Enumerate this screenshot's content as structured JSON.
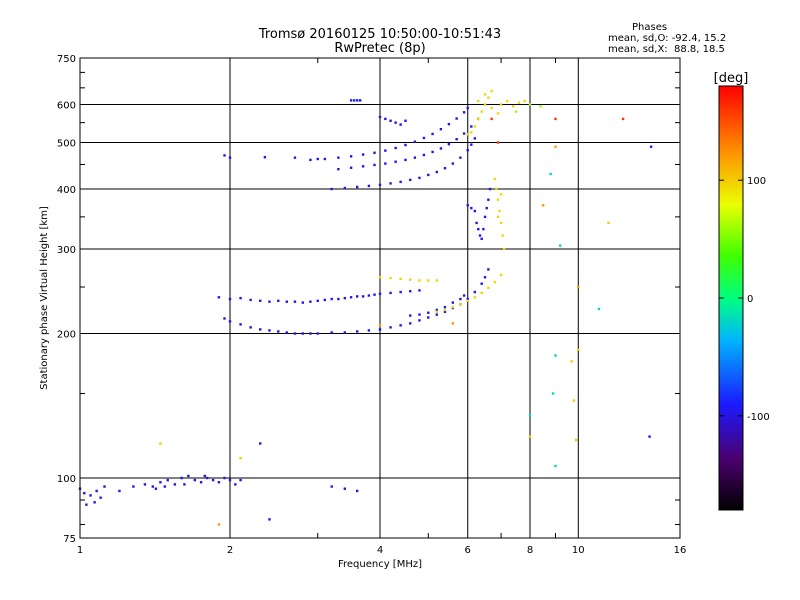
{
  "chart_data": {
    "type": "scatter",
    "title": "Tromsø 20160125 10:50:00-10:51:43",
    "subtitle": "RwPretec (8p)",
    "xlabel": "Frequency [MHz]",
    "ylabel": "Stationary phase Virtual Height [km]",
    "x_scale": "log",
    "y_scale": "log",
    "xlim": [
      1,
      16
    ],
    "ylim": [
      75,
      750
    ],
    "x_ticks": [
      1,
      2,
      4,
      6,
      8,
      10,
      16
    ],
    "y_ticks": [
      75,
      100,
      200,
      300,
      400,
      500,
      600,
      750
    ],
    "x_tick_labels": [
      "1",
      "2",
      "4",
      "6",
      "8",
      "10",
      "16"
    ],
    "y_tick_labels": [
      "75",
      "100",
      "200",
      "300",
      "400",
      "500",
      "600",
      "750"
    ],
    "grid": true,
    "stats": {
      "heading": "Phases",
      "line_o": "mean, sd,O: -92.4, 15.2",
      "line_x": "mean, sd,X:  88.8, 18.5"
    },
    "colorbar": {
      "label": "[deg]",
      "range": [
        -180,
        180
      ],
      "ticks": [
        100,
        0,
        -100
      ],
      "tick_labels": [
        "100",
        "0",
        "-100"
      ]
    },
    "traces": [
      {
        "phase": -95,
        "points": [
          [
            1.0,
            95
          ],
          [
            1.02,
            93
          ],
          [
            1.05,
            92
          ],
          [
            1.08,
            94
          ],
          [
            1.1,
            91
          ],
          [
            1.12,
            96
          ],
          [
            1.03,
            88
          ],
          [
            1.07,
            89
          ],
          [
            1.28,
            96
          ],
          [
            1.35,
            97
          ],
          [
            1.4,
            96
          ],
          [
            1.45,
            98
          ],
          [
            1.5,
            99
          ],
          [
            1.55,
            97
          ],
          [
            1.6,
            100
          ],
          [
            1.65,
            101
          ],
          [
            1.7,
            99
          ],
          [
            1.75,
            98
          ],
          [
            1.8,
            100
          ],
          [
            1.85,
            99
          ],
          [
            1.9,
            98
          ],
          [
            2.0,
            99
          ],
          [
            2.05,
            97
          ],
          [
            2.1,
            99
          ],
          [
            1.42,
            95
          ],
          [
            1.48,
            96
          ],
          [
            1.62,
            97
          ],
          [
            1.78,
            101
          ],
          [
            1.95,
            100
          ]
        ]
      },
      {
        "phase": -95,
        "points": [
          [
            1.9,
            238
          ],
          [
            2.0,
            236
          ],
          [
            2.1,
            237
          ],
          [
            2.2,
            235
          ],
          [
            2.3,
            234
          ],
          [
            2.4,
            233
          ],
          [
            2.5,
            234
          ],
          [
            2.6,
            233
          ],
          [
            2.7,
            233
          ],
          [
            2.8,
            232
          ],
          [
            2.9,
            233
          ],
          [
            3.0,
            234
          ],
          [
            3.1,
            235
          ],
          [
            3.2,
            236
          ],
          [
            3.3,
            236
          ],
          [
            3.4,
            237
          ],
          [
            3.5,
            238
          ],
          [
            3.6,
            239
          ],
          [
            3.7,
            239
          ],
          [
            3.8,
            240
          ],
          [
            3.9,
            241
          ],
          [
            4.0,
            242
          ],
          [
            4.2,
            243
          ],
          [
            4.4,
            244
          ],
          [
            4.6,
            245
          ],
          [
            4.8,
            246
          ]
        ]
      },
      {
        "phase": -95,
        "points": [
          [
            1.95,
            215
          ],
          [
            2.0,
            212
          ],
          [
            2.1,
            209
          ],
          [
            2.2,
            206
          ],
          [
            2.3,
            204
          ],
          [
            2.4,
            203
          ],
          [
            2.5,
            202
          ],
          [
            2.6,
            201
          ],
          [
            2.7,
            200
          ],
          [
            2.8,
            200
          ],
          [
            2.9,
            200
          ],
          [
            3.0,
            200
          ],
          [
            3.2,
            201
          ],
          [
            3.4,
            201
          ],
          [
            3.6,
            202
          ],
          [
            3.8,
            203
          ],
          [
            4.0,
            204
          ],
          [
            4.2,
            206
          ],
          [
            4.4,
            208
          ],
          [
            4.6,
            210
          ],
          [
            4.8,
            213
          ],
          [
            5.0,
            216
          ],
          [
            5.2,
            219
          ],
          [
            5.4,
            222
          ],
          [
            5.6,
            226
          ],
          [
            5.8,
            230
          ],
          [
            6.0,
            236
          ],
          [
            6.2,
            244
          ],
          [
            6.4,
            254
          ],
          [
            6.5,
            262
          ],
          [
            6.6,
            272
          ]
        ]
      },
      {
        "phase": -95,
        "points": [
          [
            4.6,
            218
          ],
          [
            4.8,
            219
          ],
          [
            5.0,
            221
          ],
          [
            5.2,
            224
          ],
          [
            5.4,
            227
          ],
          [
            5.6,
            232
          ],
          [
            5.8,
            236
          ],
          [
            5.9,
            240
          ]
        ]
      },
      {
        "phase": -95,
        "points": [
          [
            3.2,
            400
          ],
          [
            3.4,
            402
          ],
          [
            3.6,
            404
          ],
          [
            3.8,
            406
          ],
          [
            4.0,
            408
          ],
          [
            4.2,
            411
          ],
          [
            4.4,
            414
          ],
          [
            4.6,
            418
          ],
          [
            4.8,
            422
          ],
          [
            5.0,
            428
          ],
          [
            5.2,
            434
          ],
          [
            5.4,
            442
          ],
          [
            5.6,
            452
          ],
          [
            5.8,
            465
          ],
          [
            6.0,
            482
          ],
          [
            6.1,
            495
          ],
          [
            6.2,
            510
          ]
        ]
      },
      {
        "phase": -95,
        "points": [
          [
            3.3,
            440
          ],
          [
            3.5,
            443
          ],
          [
            3.7,
            446
          ],
          [
            3.9,
            449
          ],
          [
            4.1,
            452
          ],
          [
            4.3,
            456
          ],
          [
            4.5,
            460
          ],
          [
            4.7,
            465
          ],
          [
            4.9,
            471
          ],
          [
            5.1,
            478
          ],
          [
            5.3,
            486
          ],
          [
            5.5,
            496
          ],
          [
            5.7,
            508
          ],
          [
            5.9,
            522
          ],
          [
            6.1,
            540
          ],
          [
            6.3,
            560
          ]
        ]
      },
      {
        "phase": -95,
        "points": [
          [
            2.9,
            460
          ],
          [
            3.1,
            462
          ],
          [
            3.3,
            465
          ],
          [
            3.5,
            468
          ],
          [
            3.7,
            472
          ],
          [
            3.9,
            476
          ],
          [
            4.1,
            481
          ],
          [
            4.3,
            487
          ],
          [
            4.5,
            494
          ],
          [
            4.7,
            502
          ],
          [
            4.9,
            511
          ],
          [
            5.1,
            521
          ],
          [
            5.3,
            533
          ],
          [
            5.5,
            546
          ],
          [
            5.7,
            561
          ],
          [
            5.9,
            578
          ],
          [
            6.0,
            590
          ]
        ]
      },
      {
        "phase": -95,
        "points": [
          [
            4.0,
            565
          ],
          [
            4.1,
            560
          ],
          [
            4.2,
            555
          ],
          [
            4.3,
            550
          ],
          [
            4.4,
            545
          ],
          [
            4.5,
            555
          ]
        ]
      },
      {
        "phase": -95,
        "points": [
          [
            3.5,
            612
          ],
          [
            3.55,
            612
          ],
          [
            3.6,
            612
          ],
          [
            3.65,
            612
          ]
        ]
      },
      {
        "phase": -95,
        "points": [
          [
            1.95,
            470
          ],
          [
            2.0,
            465
          ],
          [
            2.35,
            466
          ],
          [
            2.7,
            465
          ],
          [
            3.0,
            462
          ]
        ]
      },
      {
        "phase": -95,
        "points": [
          [
            6.0,
            370
          ],
          [
            6.1,
            365
          ],
          [
            6.2,
            360
          ],
          [
            6.25,
            340
          ],
          [
            6.3,
            330
          ],
          [
            6.35,
            320
          ],
          [
            6.4,
            315
          ],
          [
            6.45,
            330
          ],
          [
            6.5,
            350
          ],
          [
            6.55,
            365
          ],
          [
            6.6,
            380
          ],
          [
            6.65,
            400
          ]
        ]
      },
      {
        "phase": 95,
        "points": [
          [
            4.0,
            262
          ],
          [
            4.2,
            261
          ],
          [
            4.4,
            260
          ],
          [
            4.6,
            259
          ],
          [
            4.8,
            258
          ],
          [
            5.0,
            258
          ],
          [
            5.2,
            258
          ]
        ]
      },
      {
        "phase": 95,
        "points": [
          [
            5.2,
            222
          ],
          [
            5.4,
            224
          ],
          [
            5.6,
            227
          ],
          [
            5.8,
            230
          ],
          [
            6.0,
            234
          ],
          [
            6.2,
            238
          ],
          [
            6.4,
            243
          ],
          [
            6.6,
            249
          ],
          [
            6.8,
            256
          ],
          [
            7.0,
            265
          ]
        ]
      },
      {
        "phase": 95,
        "points": [
          [
            6.0,
            520
          ],
          [
            6.1,
            525
          ],
          [
            6.2,
            540
          ],
          [
            6.3,
            560
          ],
          [
            6.4,
            580
          ],
          [
            6.5,
            600
          ],
          [
            6.6,
            620
          ],
          [
            6.7,
            640
          ],
          [
            6.3,
            610
          ],
          [
            6.5,
            630
          ],
          [
            6.7,
            590
          ],
          [
            6.9,
            575
          ],
          [
            7.0,
            600
          ],
          [
            7.2,
            610
          ],
          [
            7.4,
            595
          ],
          [
            7.6,
            605
          ],
          [
            7.8,
            610
          ]
        ]
      },
      {
        "phase": 95,
        "points": [
          [
            6.8,
            420
          ],
          [
            6.85,
            400
          ],
          [
            6.9,
            380
          ],
          [
            6.95,
            360
          ],
          [
            7.0,
            340
          ],
          [
            7.05,
            320
          ],
          [
            7.1,
            300
          ],
          [
            7.0,
            390
          ],
          [
            6.9,
            350
          ]
        ]
      },
      {
        "phase": 60,
        "points": [
          [
            7.5,
            580
          ],
          [
            8.0,
            600
          ],
          [
            8.4,
            595
          ]
        ]
      },
      {
        "phase": 160,
        "points": [
          [
            6.7,
            560
          ],
          [
            6.9,
            500
          ],
          [
            12.3,
            560
          ],
          [
            9.0,
            560
          ]
        ]
      },
      {
        "phase": 120,
        "points": [
          [
            4.0,
            208
          ],
          [
            5.6,
            210
          ],
          [
            1.9,
            80
          ],
          [
            8.5,
            370
          ],
          [
            10.0,
            250
          ],
          [
            9.0,
            490
          ]
        ]
      },
      {
        "phase": 100,
        "points": [
          [
            9.9,
            120
          ],
          [
            10.0,
            185
          ],
          [
            9.8,
            145
          ],
          [
            8.0,
            122
          ],
          [
            1.45,
            118
          ],
          [
            2.1,
            110
          ],
          [
            11.5,
            340
          ],
          [
            9.7,
            175
          ]
        ]
      },
      {
        "phase": -20,
        "points": [
          [
            9.0,
            106
          ],
          [
            8.9,
            150
          ],
          [
            9.0,
            180
          ],
          [
            11.0,
            225
          ],
          [
            9.2,
            305
          ],
          [
            8.0,
            135
          ],
          [
            8.8,
            430
          ]
        ]
      },
      {
        "phase": -95,
        "points": [
          [
            2.3,
            118
          ],
          [
            2.4,
            82
          ],
          [
            3.2,
            96
          ],
          [
            3.4,
            95
          ],
          [
            3.6,
            94
          ],
          [
            13.9,
            122
          ],
          [
            14.0,
            490
          ],
          [
            1.2,
            94
          ]
        ]
      }
    ]
  }
}
